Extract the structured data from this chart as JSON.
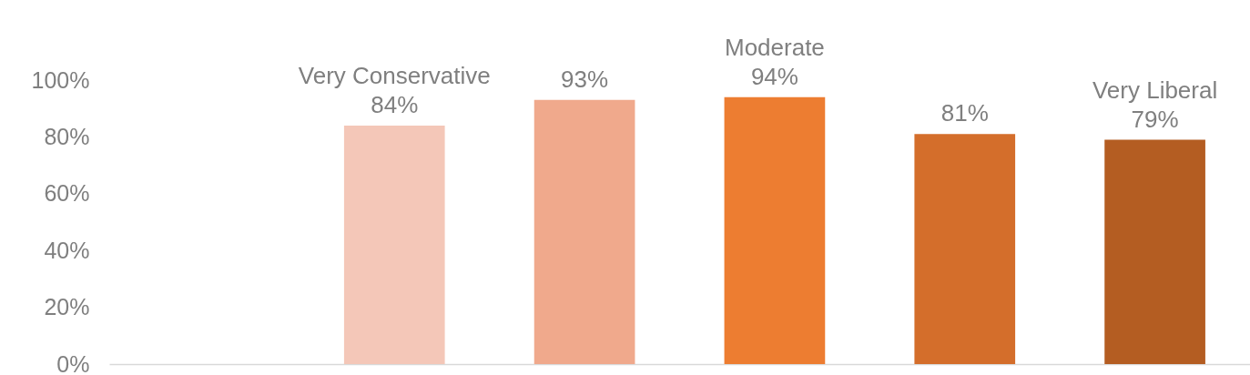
{
  "chart_data": {
    "type": "bar",
    "categories": [
      null,
      "Very Conservative",
      null,
      "Moderate",
      null,
      "Very Liberal"
    ],
    "values": [
      null,
      84,
      93,
      94,
      81,
      79
    ],
    "value_labels": [
      null,
      "84%",
      "93%",
      "94%",
      "81%",
      "79%"
    ],
    "colors": [
      "#f4c7b8",
      "#f4c7b8",
      "#f0a98c",
      "#ed7d31",
      "#d46e2b",
      "#b45d22"
    ],
    "ylim": [
      0,
      100
    ],
    "yticks": [
      {
        "value": 0,
        "label": "0%"
      },
      {
        "value": 20,
        "label": "20%"
      },
      {
        "value": 40,
        "label": "40%"
      },
      {
        "value": 60,
        "label": "60%"
      },
      {
        "value": 80,
        "label": "80%"
      },
      {
        "value": 100,
        "label": "100%"
      }
    ],
    "grid": false
  }
}
